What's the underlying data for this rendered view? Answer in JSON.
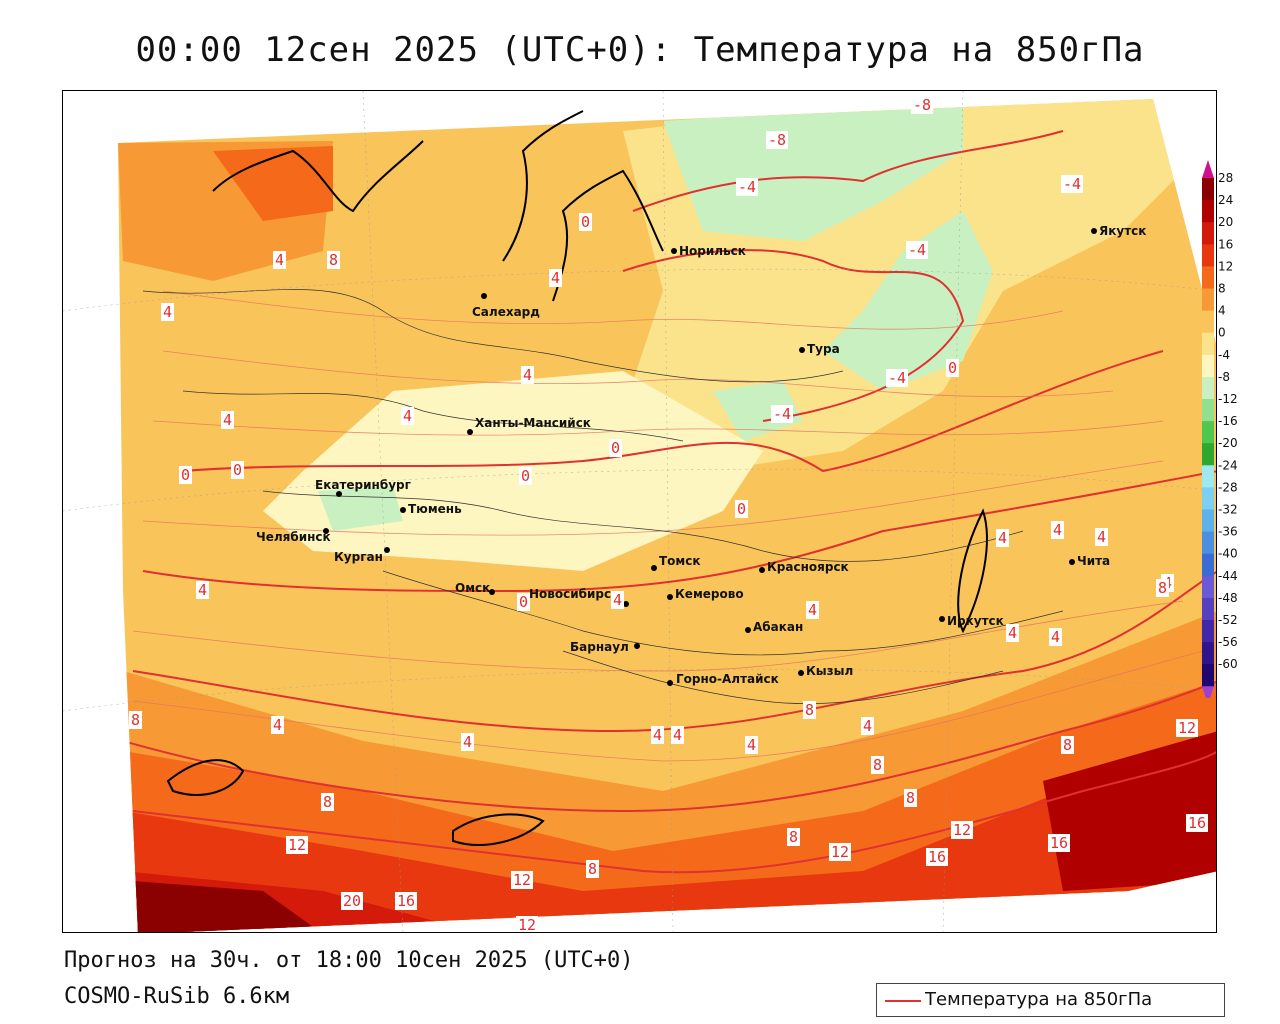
{
  "title": "00:00 12сен 2025 (UTC+0): Температура на 850гПа",
  "footer": {
    "forecast": "Прогноз на 30ч. от 18:00 10сен 2025 (UTC+0)",
    "model": "COSMO-RuSib 6.6км"
  },
  "legend": {
    "label": "Температура на 850гПа",
    "line_color": "#e03030"
  },
  "colorbar": {
    "ticks": [
      "28",
      "24",
      "20",
      "16",
      "12",
      "8",
      "4",
      "0",
      "-4",
      "-8",
      "-12",
      "-16",
      "-20",
      "-24",
      "-28",
      "-32",
      "-36",
      "-40",
      "-44",
      "-48",
      "-52",
      "-56",
      "-60"
    ],
    "colors": [
      "#8b0000",
      "#b00000",
      "#d41a0a",
      "#e8380f",
      "#f46a1a",
      "#f79a36",
      "#f9c45a",
      "#fbe38c",
      "#fdf6c0",
      "#c8f0c0",
      "#8fe08f",
      "#50c850",
      "#2ea82e",
      "#9ee8f0",
      "#7ccff0",
      "#5eb2ec",
      "#4a8fe0",
      "#3a6cd4",
      "#6a5ad8",
      "#5540c0",
      "#4028a8",
      "#30148c",
      "#200670"
    ]
  },
  "cities": [
    {
      "name": "Норильск"
    },
    {
      "name": "Якутск"
    },
    {
      "name": "Салехард"
    },
    {
      "name": "Тура"
    },
    {
      "name": "Ханты-Мансийск"
    },
    {
      "name": "Екатеринбург"
    },
    {
      "name": "Тюмень"
    },
    {
      "name": "Челябинск"
    },
    {
      "name": "Курган"
    },
    {
      "name": "Омск"
    },
    {
      "name": "Новосибирск"
    },
    {
      "name": "Томск"
    },
    {
      "name": "Кемерово"
    },
    {
      "name": "Красноярск"
    },
    {
      "name": "Барнаул"
    },
    {
      "name": "Абакан"
    },
    {
      "name": "Иркутск"
    },
    {
      "name": "Чита"
    },
    {
      "name": "Горно-Алтайск"
    },
    {
      "name": "Кызыл"
    }
  ],
  "isotherm_labels": [
    "-8",
    "-8",
    "-4",
    "-4",
    "-4",
    "-4",
    "-4",
    "0",
    "0",
    "0",
    "0",
    "0",
    "0",
    "0",
    "0",
    "4",
    "4",
    "4",
    "4",
    "4",
    "4",
    "4",
    "4",
    "4",
    "4",
    "4",
    "4",
    "4",
    "4",
    "4",
    "4",
    "4",
    "4",
    "4",
    "4",
    "4",
    "8",
    "8",
    "8",
    "8",
    "8",
    "8",
    "8",
    "8",
    "8",
    "8",
    "12",
    "12",
    "12",
    "12",
    "12",
    "12",
    "16",
    "16",
    "16",
    "16",
    "20"
  ]
}
